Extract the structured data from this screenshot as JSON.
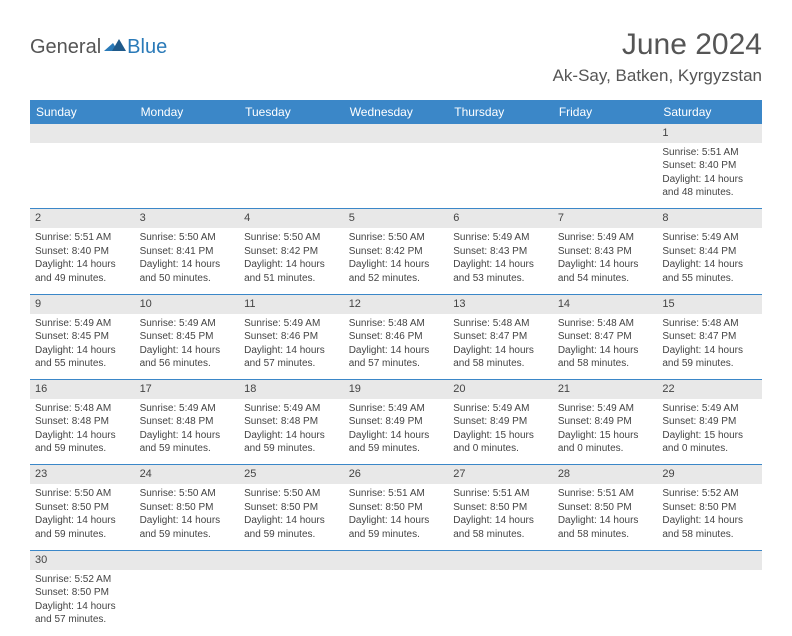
{
  "logo": {
    "part1": "General",
    "part2": "Blue"
  },
  "title": "June 2024",
  "location": "Ak-Say, Batken, Kyrgyzstan",
  "colors": {
    "header_bg": "#3b87c8",
    "header_text": "#ffffff",
    "daynum_bg": "#e8e8e8",
    "border": "#3b87c8",
    "text": "#444444",
    "logo_gray": "#555555",
    "logo_blue": "#2a7ab8"
  },
  "day_headers": [
    "Sunday",
    "Monday",
    "Tuesday",
    "Wednesday",
    "Thursday",
    "Friday",
    "Saturday"
  ],
  "weeks": [
    [
      null,
      null,
      null,
      null,
      null,
      null,
      {
        "n": "1",
        "sr": "5:51 AM",
        "ss": "8:40 PM",
        "dl": "14 hours and 48 minutes."
      }
    ],
    [
      {
        "n": "2",
        "sr": "5:51 AM",
        "ss": "8:40 PM",
        "dl": "14 hours and 49 minutes."
      },
      {
        "n": "3",
        "sr": "5:50 AM",
        "ss": "8:41 PM",
        "dl": "14 hours and 50 minutes."
      },
      {
        "n": "4",
        "sr": "5:50 AM",
        "ss": "8:42 PM",
        "dl": "14 hours and 51 minutes."
      },
      {
        "n": "5",
        "sr": "5:50 AM",
        "ss": "8:42 PM",
        "dl": "14 hours and 52 minutes."
      },
      {
        "n": "6",
        "sr": "5:49 AM",
        "ss": "8:43 PM",
        "dl": "14 hours and 53 minutes."
      },
      {
        "n": "7",
        "sr": "5:49 AM",
        "ss": "8:43 PM",
        "dl": "14 hours and 54 minutes."
      },
      {
        "n": "8",
        "sr": "5:49 AM",
        "ss": "8:44 PM",
        "dl": "14 hours and 55 minutes."
      }
    ],
    [
      {
        "n": "9",
        "sr": "5:49 AM",
        "ss": "8:45 PM",
        "dl": "14 hours and 55 minutes."
      },
      {
        "n": "10",
        "sr": "5:49 AM",
        "ss": "8:45 PM",
        "dl": "14 hours and 56 minutes."
      },
      {
        "n": "11",
        "sr": "5:49 AM",
        "ss": "8:46 PM",
        "dl": "14 hours and 57 minutes."
      },
      {
        "n": "12",
        "sr": "5:48 AM",
        "ss": "8:46 PM",
        "dl": "14 hours and 57 minutes."
      },
      {
        "n": "13",
        "sr": "5:48 AM",
        "ss": "8:47 PM",
        "dl": "14 hours and 58 minutes."
      },
      {
        "n": "14",
        "sr": "5:48 AM",
        "ss": "8:47 PM",
        "dl": "14 hours and 58 minutes."
      },
      {
        "n": "15",
        "sr": "5:48 AM",
        "ss": "8:47 PM",
        "dl": "14 hours and 59 minutes."
      }
    ],
    [
      {
        "n": "16",
        "sr": "5:48 AM",
        "ss": "8:48 PM",
        "dl": "14 hours and 59 minutes."
      },
      {
        "n": "17",
        "sr": "5:49 AM",
        "ss": "8:48 PM",
        "dl": "14 hours and 59 minutes."
      },
      {
        "n": "18",
        "sr": "5:49 AM",
        "ss": "8:48 PM",
        "dl": "14 hours and 59 minutes."
      },
      {
        "n": "19",
        "sr": "5:49 AM",
        "ss": "8:49 PM",
        "dl": "14 hours and 59 minutes."
      },
      {
        "n": "20",
        "sr": "5:49 AM",
        "ss": "8:49 PM",
        "dl": "15 hours and 0 minutes."
      },
      {
        "n": "21",
        "sr": "5:49 AM",
        "ss": "8:49 PM",
        "dl": "15 hours and 0 minutes."
      },
      {
        "n": "22",
        "sr": "5:49 AM",
        "ss": "8:49 PM",
        "dl": "15 hours and 0 minutes."
      }
    ],
    [
      {
        "n": "23",
        "sr": "5:50 AM",
        "ss": "8:50 PM",
        "dl": "14 hours and 59 minutes."
      },
      {
        "n": "24",
        "sr": "5:50 AM",
        "ss": "8:50 PM",
        "dl": "14 hours and 59 minutes."
      },
      {
        "n": "25",
        "sr": "5:50 AM",
        "ss": "8:50 PM",
        "dl": "14 hours and 59 minutes."
      },
      {
        "n": "26",
        "sr": "5:51 AM",
        "ss": "8:50 PM",
        "dl": "14 hours and 59 minutes."
      },
      {
        "n": "27",
        "sr": "5:51 AM",
        "ss": "8:50 PM",
        "dl": "14 hours and 58 minutes."
      },
      {
        "n": "28",
        "sr": "5:51 AM",
        "ss": "8:50 PM",
        "dl": "14 hours and 58 minutes."
      },
      {
        "n": "29",
        "sr": "5:52 AM",
        "ss": "8:50 PM",
        "dl": "14 hours and 58 minutes."
      }
    ],
    [
      {
        "n": "30",
        "sr": "5:52 AM",
        "ss": "8:50 PM",
        "dl": "14 hours and 57 minutes."
      },
      null,
      null,
      null,
      null,
      null,
      null
    ]
  ],
  "labels": {
    "sunrise": "Sunrise:",
    "sunset": "Sunset:",
    "daylight": "Daylight:"
  }
}
